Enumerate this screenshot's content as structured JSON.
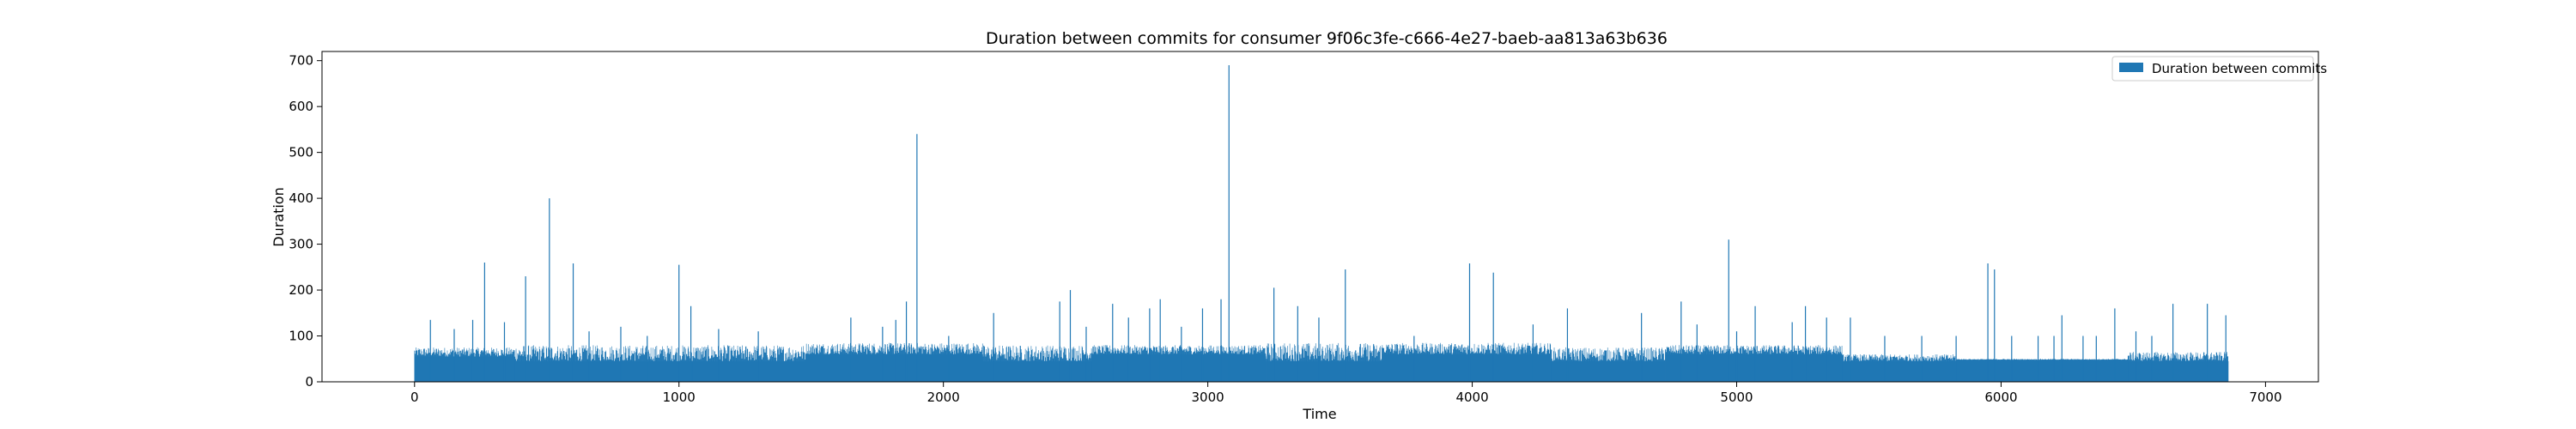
{
  "chart_data": {
    "type": "bar",
    "title": "Duration between commits for consumer 9f06c3fe-c666-4e27-baeb-aa813a63b636",
    "xlabel": "Time",
    "ylabel": "Duration",
    "xlim": [
      -350,
      7200
    ],
    "ylim": [
      0,
      720
    ],
    "xticks": [
      0,
      1000,
      2000,
      3000,
      4000,
      5000,
      6000,
      7000
    ],
    "yticks": [
      0,
      100,
      200,
      300,
      400,
      500,
      600,
      700
    ],
    "grid": false,
    "legend": {
      "position": "top-right"
    },
    "series": [
      {
        "name": "Duration between commits",
        "color": "#1f77b4",
        "x_range": [
          0,
          6860
        ],
        "segments": [
          {
            "x": [
              0,
              380
            ],
            "typical_max": 75,
            "min": 55
          },
          {
            "x": [
              380,
              1050
            ],
            "typical_max": 80,
            "min": 45
          },
          {
            "x": [
              1050,
              1480
            ],
            "typical_max": 80,
            "min": 45
          },
          {
            "x": [
              1480,
              2150
            ],
            "typical_max": 85,
            "min": 60
          },
          {
            "x": [
              2150,
              2560
            ],
            "typical_max": 80,
            "min": 45
          },
          {
            "x": [
              2560,
              3220
            ],
            "typical_max": 80,
            "min": 60
          },
          {
            "x": [
              3220,
              3660
            ],
            "typical_max": 85,
            "min": 45
          },
          {
            "x": [
              3660,
              4300
            ],
            "typical_max": 85,
            "min": 60
          },
          {
            "x": [
              4300,
              4730
            ],
            "typical_max": 75,
            "min": 45
          },
          {
            "x": [
              4730,
              5400
            ],
            "typical_max": 80,
            "min": 60
          },
          {
            "x": [
              5400,
              5830
            ],
            "typical_max": 60,
            "min": 45
          },
          {
            "x": [
              5830,
              6480
            ],
            "typical_max": 50,
            "min": 48
          },
          {
            "x": [
              6480,
              6860
            ],
            "typical_max": 65,
            "min": 45
          }
        ],
        "peaks": [
          {
            "x": 60,
            "y": 135
          },
          {
            "x": 150,
            "y": 115
          },
          {
            "x": 220,
            "y": 135
          },
          {
            "x": 265,
            "y": 260
          },
          {
            "x": 340,
            "y": 130
          },
          {
            "x": 420,
            "y": 230
          },
          {
            "x": 510,
            "y": 400
          },
          {
            "x": 600,
            "y": 258
          },
          {
            "x": 660,
            "y": 110
          },
          {
            "x": 780,
            "y": 120
          },
          {
            "x": 880,
            "y": 100
          },
          {
            "x": 1000,
            "y": 255
          },
          {
            "x": 1045,
            "y": 165
          },
          {
            "x": 1150,
            "y": 115
          },
          {
            "x": 1300,
            "y": 110
          },
          {
            "x": 1650,
            "y": 140
          },
          {
            "x": 1770,
            "y": 120
          },
          {
            "x": 1820,
            "y": 135
          },
          {
            "x": 1860,
            "y": 175
          },
          {
            "x": 1900,
            "y": 540
          },
          {
            "x": 2020,
            "y": 100
          },
          {
            "x": 2190,
            "y": 150
          },
          {
            "x": 2440,
            "y": 175
          },
          {
            "x": 2480,
            "y": 200
          },
          {
            "x": 2540,
            "y": 120
          },
          {
            "x": 2640,
            "y": 170
          },
          {
            "x": 2700,
            "y": 140
          },
          {
            "x": 2780,
            "y": 160
          },
          {
            "x": 2820,
            "y": 180
          },
          {
            "x": 2900,
            "y": 120
          },
          {
            "x": 2980,
            "y": 160
          },
          {
            "x": 3050,
            "y": 180
          },
          {
            "x": 3080,
            "y": 690
          },
          {
            "x": 3250,
            "y": 205
          },
          {
            "x": 3340,
            "y": 165
          },
          {
            "x": 3420,
            "y": 140
          },
          {
            "x": 3520,
            "y": 245
          },
          {
            "x": 3780,
            "y": 100
          },
          {
            "x": 3990,
            "y": 258
          },
          {
            "x": 4080,
            "y": 238
          },
          {
            "x": 4230,
            "y": 125
          },
          {
            "x": 4360,
            "y": 160
          },
          {
            "x": 4640,
            "y": 150
          },
          {
            "x": 4790,
            "y": 175
          },
          {
            "x": 4850,
            "y": 125
          },
          {
            "x": 4970,
            "y": 310
          },
          {
            "x": 5000,
            "y": 110
          },
          {
            "x": 5070,
            "y": 165
          },
          {
            "x": 5210,
            "y": 130
          },
          {
            "x": 5260,
            "y": 165
          },
          {
            "x": 5340,
            "y": 140
          },
          {
            "x": 5430,
            "y": 140
          },
          {
            "x": 5560,
            "y": 100
          },
          {
            "x": 5700,
            "y": 100
          },
          {
            "x": 5830,
            "y": 100
          },
          {
            "x": 5950,
            "y": 258
          },
          {
            "x": 5975,
            "y": 245
          },
          {
            "x": 6040,
            "y": 100
          },
          {
            "x": 6140,
            "y": 100
          },
          {
            "x": 6200,
            "y": 100
          },
          {
            "x": 6230,
            "y": 145
          },
          {
            "x": 6310,
            "y": 100
          },
          {
            "x": 6360,
            "y": 100
          },
          {
            "x": 6430,
            "y": 160
          },
          {
            "x": 6510,
            "y": 110
          },
          {
            "x": 6570,
            "y": 100
          },
          {
            "x": 6650,
            "y": 170
          },
          {
            "x": 6780,
            "y": 170
          },
          {
            "x": 6850,
            "y": 145
          }
        ]
      }
    ]
  }
}
